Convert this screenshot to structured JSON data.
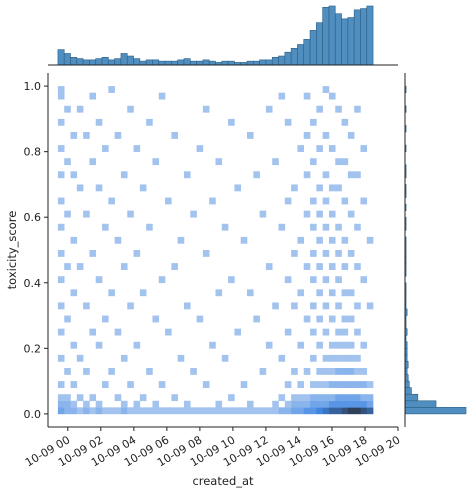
{
  "chart_data": {
    "type": "heatmap",
    "subtype": "jointplot-2d-histogram-with-marginals",
    "xlabel": "created_at",
    "ylabel": "toxicity_score",
    "x_ticks": [
      "10-09 00",
      "10-09 02",
      "10-09 04",
      "10-09 06",
      "10-09 08",
      "10-09 10",
      "10-09 12",
      "10-09 14",
      "10-09 16",
      "10-09 18",
      "10-09 20"
    ],
    "x_tick_hours": [
      0,
      2,
      4,
      6,
      8,
      10,
      12,
      14,
      16,
      18,
      20
    ],
    "y_ticks": [
      0.0,
      0.2,
      0.4,
      0.6,
      0.8,
      1.0
    ],
    "xlim_hours": [
      -1.2,
      20.0
    ],
    "ylim": [
      -0.04,
      1.04
    ],
    "x_bins": 50,
    "y_bins": 50,
    "x_bin_start_hours": -0.6,
    "x_bin_width_hours": 0.3818,
    "y_bin_start": 0.0,
    "y_bin_width": 0.02,
    "colors": {
      "bar_fill": "#4f8ebf",
      "bar_edge": "#2b5f86",
      "heat_low": "#a3c3ef",
      "heat_mid": "#3f86e2",
      "heat_high": "#2f3f57",
      "axis": "#222222"
    },
    "x_marginal_counts": [
      12,
      9,
      6,
      5,
      4,
      4,
      5,
      6,
      4,
      5,
      9,
      7,
      5,
      3,
      4,
      4,
      3,
      3,
      3,
      4,
      5,
      3,
      3,
      4,
      3,
      2,
      3,
      3,
      2,
      2,
      3,
      3,
      4,
      4,
      6,
      7,
      10,
      13,
      16,
      20,
      27,
      33,
      45,
      46,
      40,
      36,
      37,
      43,
      44,
      46
    ],
    "y_marginal_counts": [
      57,
      29,
      12,
      6,
      4,
      3,
      2,
      3,
      2,
      2,
      2,
      1,
      2,
      1,
      1,
      2,
      1,
      1,
      1,
      1,
      0,
      1,
      1,
      1,
      1,
      1,
      1,
      0,
      1,
      1,
      0,
      1,
      0,
      1,
      1,
      0,
      1,
      1,
      0,
      0,
      1,
      0,
      0,
      1,
      0,
      0,
      1,
      0,
      0,
      1
    ],
    "heat_cells": [
      [
        0,
        0,
        3
      ],
      [
        1,
        0,
        2
      ],
      [
        2,
        0,
        2
      ],
      [
        3,
        0,
        1
      ],
      [
        4,
        0,
        2
      ],
      [
        5,
        0,
        1
      ],
      [
        6,
        0,
        2
      ],
      [
        7,
        0,
        1
      ],
      [
        8,
        0,
        1
      ],
      [
        9,
        0,
        1
      ],
      [
        10,
        0,
        2
      ],
      [
        11,
        0,
        1
      ],
      [
        12,
        0,
        1
      ],
      [
        13,
        0,
        1
      ],
      [
        14,
        0,
        1
      ],
      [
        15,
        0,
        1
      ],
      [
        16,
        0,
        1
      ],
      [
        17,
        0,
        1
      ],
      [
        18,
        0,
        1
      ],
      [
        19,
        0,
        1
      ],
      [
        20,
        0,
        1
      ],
      [
        21,
        0,
        1
      ],
      [
        22,
        0,
        1
      ],
      [
        23,
        0,
        1
      ],
      [
        24,
        0,
        1
      ],
      [
        25,
        0,
        1
      ],
      [
        26,
        0,
        1
      ],
      [
        27,
        0,
        1
      ],
      [
        28,
        0,
        1
      ],
      [
        29,
        0,
        1
      ],
      [
        30,
        0,
        1
      ],
      [
        31,
        0,
        1
      ],
      [
        32,
        0,
        1
      ],
      [
        33,
        0,
        1
      ],
      [
        34,
        0,
        1
      ],
      [
        35,
        0,
        2
      ],
      [
        36,
        0,
        2
      ],
      [
        37,
        0,
        3
      ],
      [
        38,
        0,
        3
      ],
      [
        39,
        0,
        4
      ],
      [
        40,
        0,
        4
      ],
      [
        41,
        0,
        5
      ],
      [
        42,
        0,
        6
      ],
      [
        43,
        0,
        7
      ],
      [
        44,
        0,
        7
      ],
      [
        45,
        0,
        8
      ],
      [
        46,
        0,
        9
      ],
      [
        47,
        0,
        9
      ],
      [
        48,
        0,
        8
      ],
      [
        49,
        0,
        7
      ],
      [
        0,
        1,
        2
      ],
      [
        1,
        1,
        2
      ],
      [
        2,
        1,
        1
      ],
      [
        4,
        1,
        1
      ],
      [
        6,
        1,
        1
      ],
      [
        10,
        1,
        1
      ],
      [
        12,
        1,
        1
      ],
      [
        15,
        1,
        1
      ],
      [
        20,
        1,
        1
      ],
      [
        25,
        1,
        1
      ],
      [
        30,
        1,
        1
      ],
      [
        34,
        1,
        1
      ],
      [
        36,
        1,
        1
      ],
      [
        37,
        1,
        2
      ],
      [
        38,
        1,
        2
      ],
      [
        39,
        1,
        2
      ],
      [
        40,
        1,
        3
      ],
      [
        41,
        1,
        3
      ],
      [
        42,
        1,
        3
      ],
      [
        43,
        1,
        4
      ],
      [
        44,
        1,
        4
      ],
      [
        45,
        1,
        4
      ],
      [
        46,
        1,
        4
      ],
      [
        47,
        1,
        4
      ],
      [
        48,
        1,
        4
      ],
      [
        49,
        1,
        3
      ],
      [
        0,
        2,
        1
      ],
      [
        1,
        2,
        1
      ],
      [
        3,
        2,
        1
      ],
      [
        5,
        2,
        1
      ],
      [
        9,
        2,
        1
      ],
      [
        13,
        2,
        1
      ],
      [
        18,
        2,
        1
      ],
      [
        27,
        2,
        1
      ],
      [
        35,
        2,
        1
      ],
      [
        37,
        2,
        1
      ],
      [
        38,
        2,
        1
      ],
      [
        39,
        2,
        1
      ],
      [
        40,
        2,
        2
      ],
      [
        41,
        2,
        2
      ],
      [
        42,
        2,
        2
      ],
      [
        43,
        2,
        2
      ],
      [
        44,
        2,
        3
      ],
      [
        45,
        2,
        3
      ],
      [
        46,
        2,
        3
      ],
      [
        47,
        2,
        3
      ],
      [
        48,
        2,
        2
      ],
      [
        49,
        2,
        2
      ],
      [
        0,
        4,
        1
      ],
      [
        2,
        4,
        1
      ],
      [
        7,
        4,
        1
      ],
      [
        11,
        4,
        1
      ],
      [
        16,
        4,
        1
      ],
      [
        23,
        4,
        1
      ],
      [
        29,
        4,
        1
      ],
      [
        36,
        4,
        1
      ],
      [
        38,
        4,
        1
      ],
      [
        40,
        4,
        1
      ],
      [
        41,
        4,
        1
      ],
      [
        42,
        4,
        1
      ],
      [
        43,
        4,
        2
      ],
      [
        44,
        4,
        2
      ],
      [
        45,
        4,
        2
      ],
      [
        46,
        4,
        2
      ],
      [
        47,
        4,
        2
      ],
      [
        48,
        4,
        2
      ],
      [
        49,
        4,
        1
      ],
      [
        1,
        6,
        1
      ],
      [
        4,
        6,
        1
      ],
      [
        8,
        6,
        1
      ],
      [
        14,
        6,
        1
      ],
      [
        21,
        6,
        1
      ],
      [
        32,
        6,
        1
      ],
      [
        37,
        6,
        1
      ],
      [
        39,
        6,
        1
      ],
      [
        41,
        6,
        1
      ],
      [
        42,
        6,
        1
      ],
      [
        43,
        6,
        1
      ],
      [
        44,
        6,
        2
      ],
      [
        45,
        6,
        2
      ],
      [
        46,
        6,
        2
      ],
      [
        47,
        6,
        1
      ],
      [
        48,
        6,
        1
      ],
      [
        0,
        8,
        1
      ],
      [
        3,
        8,
        1
      ],
      [
        10,
        8,
        1
      ],
      [
        19,
        8,
        1
      ],
      [
        26,
        8,
        1
      ],
      [
        35,
        8,
        1
      ],
      [
        40,
        8,
        1
      ],
      [
        42,
        8,
        1
      ],
      [
        43,
        8,
        1
      ],
      [
        44,
        8,
        1
      ],
      [
        45,
        8,
        1
      ],
      [
        46,
        8,
        1
      ],
      [
        47,
        8,
        1
      ],
      [
        2,
        10,
        1
      ],
      [
        6,
        10,
        1
      ],
      [
        12,
        10,
        1
      ],
      [
        24,
        10,
        1
      ],
      [
        33,
        10,
        1
      ],
      [
        38,
        10,
        1
      ],
      [
        41,
        10,
        1
      ],
      [
        43,
        10,
        1
      ],
      [
        44,
        10,
        1
      ],
      [
        45,
        10,
        1
      ],
      [
        46,
        10,
        1
      ],
      [
        48,
        10,
        1
      ],
      [
        0,
        12,
        1
      ],
      [
        5,
        12,
        1
      ],
      [
        9,
        12,
        1
      ],
      [
        17,
        12,
        1
      ],
      [
        28,
        12,
        1
      ],
      [
        36,
        12,
        1
      ],
      [
        40,
        12,
        1
      ],
      [
        42,
        12,
        1
      ],
      [
        44,
        12,
        1
      ],
      [
        45,
        12,
        1
      ],
      [
        47,
        12,
        1
      ],
      [
        1,
        14,
        1
      ],
      [
        7,
        14,
        1
      ],
      [
        15,
        14,
        1
      ],
      [
        22,
        14,
        1
      ],
      [
        31,
        14,
        1
      ],
      [
        39,
        14,
        1
      ],
      [
        41,
        14,
        1
      ],
      [
        43,
        14,
        1
      ],
      [
        45,
        14,
        1
      ],
      [
        46,
        14,
        1
      ],
      [
        0,
        16,
        1
      ],
      [
        4,
        16,
        1
      ],
      [
        11,
        16,
        1
      ],
      [
        20,
        16,
        1
      ],
      [
        34,
        16,
        1
      ],
      [
        37,
        16,
        1
      ],
      [
        40,
        16,
        1
      ],
      [
        42,
        16,
        1
      ],
      [
        44,
        16,
        1
      ],
      [
        47,
        16,
        1
      ],
      [
        49,
        16,
        1
      ],
      [
        2,
        18,
        1
      ],
      [
        8,
        18,
        1
      ],
      [
        13,
        18,
        1
      ],
      [
        25,
        18,
        1
      ],
      [
        30,
        18,
        1
      ],
      [
        38,
        18,
        1
      ],
      [
        41,
        18,
        1
      ],
      [
        43,
        18,
        1
      ],
      [
        45,
        18,
        1
      ],
      [
        46,
        18,
        1
      ],
      [
        0,
        20,
        1
      ],
      [
        6,
        20,
        1
      ],
      [
        16,
        20,
        1
      ],
      [
        27,
        20,
        1
      ],
      [
        36,
        20,
        1
      ],
      [
        40,
        20,
        1
      ],
      [
        42,
        20,
        1
      ],
      [
        44,
        20,
        1
      ],
      [
        48,
        20,
        1
      ],
      [
        1,
        22,
        1
      ],
      [
        3,
        22,
        1
      ],
      [
        10,
        22,
        1
      ],
      [
        18,
        22,
        1
      ],
      [
        33,
        22,
        1
      ],
      [
        39,
        22,
        1
      ],
      [
        41,
        22,
        1
      ],
      [
        43,
        22,
        1
      ],
      [
        45,
        22,
        1
      ],
      [
        47,
        22,
        1
      ],
      [
        0,
        24,
        1
      ],
      [
        5,
        24,
        1
      ],
      [
        12,
        24,
        1
      ],
      [
        23,
        24,
        1
      ],
      [
        37,
        24,
        1
      ],
      [
        40,
        24,
        1
      ],
      [
        42,
        24,
        1
      ],
      [
        44,
        24,
        1
      ],
      [
        46,
        24,
        1
      ],
      [
        2,
        26,
        1
      ],
      [
        9,
        26,
        1
      ],
      [
        19,
        26,
        1
      ],
      [
        29,
        26,
        1
      ],
      [
        38,
        26,
        1
      ],
      [
        41,
        26,
        1
      ],
      [
        43,
        26,
        1
      ],
      [
        45,
        26,
        1
      ],
      [
        49,
        26,
        1
      ],
      [
        0,
        28,
        1
      ],
      [
        7,
        28,
        1
      ],
      [
        14,
        28,
        1
      ],
      [
        26,
        28,
        1
      ],
      [
        35,
        28,
        1
      ],
      [
        40,
        28,
        1
      ],
      [
        42,
        28,
        1
      ],
      [
        44,
        28,
        1
      ],
      [
        47,
        28,
        1
      ],
      [
        1,
        30,
        1
      ],
      [
        4,
        30,
        1
      ],
      [
        11,
        30,
        1
      ],
      [
        21,
        30,
        1
      ],
      [
        32,
        30,
        1
      ],
      [
        39,
        30,
        1
      ],
      [
        41,
        30,
        1
      ],
      [
        43,
        30,
        1
      ],
      [
        46,
        30,
        1
      ],
      [
        0,
        32,
        1
      ],
      [
        8,
        32,
        1
      ],
      [
        17,
        32,
        1
      ],
      [
        24,
        32,
        1
      ],
      [
        36,
        32,
        1
      ],
      [
        40,
        32,
        1
      ],
      [
        42,
        32,
        1
      ],
      [
        45,
        32,
        1
      ],
      [
        48,
        32,
        1
      ],
      [
        3,
        34,
        1
      ],
      [
        6,
        34,
        1
      ],
      [
        13,
        34,
        1
      ],
      [
        28,
        34,
        1
      ],
      [
        37,
        34,
        1
      ],
      [
        41,
        34,
        1
      ],
      [
        43,
        34,
        1
      ],
      [
        44,
        34,
        1
      ],
      [
        0,
        36,
        1
      ],
      [
        2,
        36,
        1
      ],
      [
        10,
        36,
        1
      ],
      [
        20,
        36,
        1
      ],
      [
        31,
        36,
        1
      ],
      [
        39,
        36,
        1
      ],
      [
        42,
        36,
        1
      ],
      [
        46,
        36,
        1
      ],
      [
        47,
        36,
        1
      ],
      [
        1,
        38,
        1
      ],
      [
        5,
        38,
        1
      ],
      [
        15,
        38,
        1
      ],
      [
        25,
        38,
        1
      ],
      [
        34,
        38,
        1
      ],
      [
        40,
        38,
        1
      ],
      [
        44,
        38,
        1
      ],
      [
        45,
        38,
        1
      ],
      [
        0,
        40,
        1
      ],
      [
        7,
        40,
        1
      ],
      [
        12,
        40,
        1
      ],
      [
        22,
        40,
        1
      ],
      [
        38,
        40,
        1
      ],
      [
        41,
        40,
        1
      ],
      [
        43,
        40,
        1
      ],
      [
        48,
        40,
        1
      ],
      [
        2,
        42,
        1
      ],
      [
        4,
        42,
        1
      ],
      [
        9,
        42,
        1
      ],
      [
        18,
        42,
        1
      ],
      [
        30,
        42,
        1
      ],
      [
        39,
        42,
        1
      ],
      [
        42,
        42,
        1
      ],
      [
        46,
        42,
        1
      ],
      [
        0,
        44,
        1
      ],
      [
        6,
        44,
        1
      ],
      [
        14,
        44,
        1
      ],
      [
        27,
        44,
        1
      ],
      [
        36,
        44,
        1
      ],
      [
        40,
        44,
        1
      ],
      [
        45,
        44,
        1
      ],
      [
        1,
        46,
        1
      ],
      [
        3,
        46,
        1
      ],
      [
        11,
        46,
        1
      ],
      [
        23,
        46,
        1
      ],
      [
        33,
        46,
        1
      ],
      [
        41,
        46,
        1
      ],
      [
        44,
        46,
        1
      ],
      [
        47,
        46,
        1
      ],
      [
        0,
        48,
        1
      ],
      [
        5,
        48,
        1
      ],
      [
        16,
        48,
        1
      ],
      [
        35,
        48,
        1
      ],
      [
        39,
        48,
        1
      ],
      [
        43,
        48,
        1
      ],
      [
        0,
        49,
        1
      ],
      [
        8,
        49,
        1
      ],
      [
        42,
        49,
        1
      ]
    ]
  }
}
